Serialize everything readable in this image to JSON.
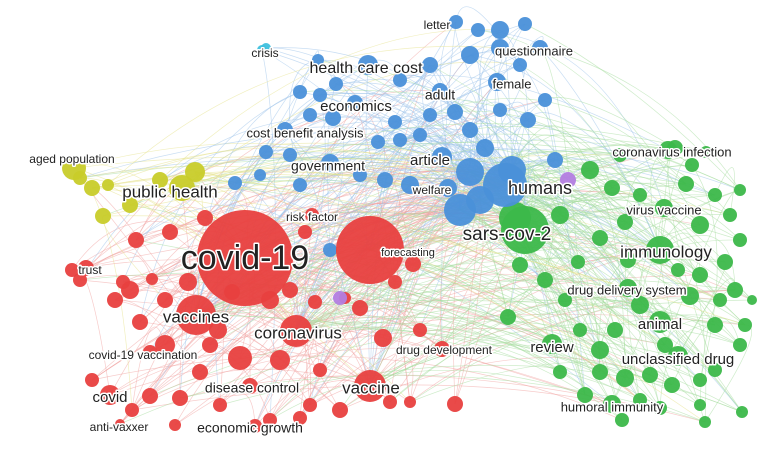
{
  "colors": {
    "red": "#e8403f",
    "blue": "#4a90d9",
    "green": "#3cb84a",
    "yellow": "#c8cc2a",
    "purple": "#b37ee0",
    "cyan": "#3fc0dd",
    "edge_red": "#f0a3a0",
    "edge_blue": "#9cc2ea",
    "edge_green": "#a6dc9f",
    "edge_yellow": "#e6e28a"
  },
  "labels": [
    {
      "id": "covid-19",
      "text": "covid-19",
      "cluster": "red"
    },
    {
      "id": "vaccines",
      "text": "vaccines",
      "cluster": "red"
    },
    {
      "id": "coronavirus",
      "text": "coronavirus",
      "cluster": "red"
    },
    {
      "id": "vaccine",
      "text": "vaccine",
      "cluster": "red"
    },
    {
      "id": "covid",
      "text": "covid",
      "cluster": "red"
    },
    {
      "id": "trust",
      "text": "trust",
      "cluster": "red"
    },
    {
      "id": "covid-19-vaccination",
      "text": "covid-19 vaccination",
      "cluster": "red"
    },
    {
      "id": "disease-control",
      "text": "disease control",
      "cluster": "red"
    },
    {
      "id": "economic-growth",
      "text": "economic growth",
      "cluster": "red"
    },
    {
      "id": "anti-vaxxer",
      "text": "anti-vaxxer",
      "cluster": "red"
    },
    {
      "id": "risk-factor",
      "text": "risk factor",
      "cluster": "red"
    },
    {
      "id": "forecasting",
      "text": "forecasting",
      "cluster": "red"
    },
    {
      "id": "drug-development",
      "text": "drug development",
      "cluster": "red"
    },
    {
      "id": "humans",
      "text": "humans",
      "cluster": "blue"
    },
    {
      "id": "article",
      "text": "article",
      "cluster": "blue"
    },
    {
      "id": "welfare",
      "text": "welfare",
      "cluster": "blue"
    },
    {
      "id": "government",
      "text": "government",
      "cluster": "blue"
    },
    {
      "id": "cost-benefit-analysis",
      "text": "cost benefit analysis",
      "cluster": "blue"
    },
    {
      "id": "economics",
      "text": "economics",
      "cluster": "blue"
    },
    {
      "id": "health-care-cost",
      "text": "health care cost",
      "cluster": "blue"
    },
    {
      "id": "adult",
      "text": "adult",
      "cluster": "blue"
    },
    {
      "id": "female",
      "text": "female",
      "cluster": "blue"
    },
    {
      "id": "questionnaire",
      "text": "questionnaire",
      "cluster": "blue"
    },
    {
      "id": "letter",
      "text": "letter",
      "cluster": "blue"
    },
    {
      "id": "crisis",
      "text": "crisis",
      "cluster": "cyan"
    },
    {
      "id": "sars-cov-2",
      "text": "sars-cov-2",
      "cluster": "green"
    },
    {
      "id": "immunology",
      "text": "immunology",
      "cluster": "green"
    },
    {
      "id": "coronavirus-infection",
      "text": "coronavirus infection",
      "cluster": "green"
    },
    {
      "id": "virus-vaccine",
      "text": "virus vaccine",
      "cluster": "green"
    },
    {
      "id": "drug-delivery-system",
      "text": "drug delivery system",
      "cluster": "green"
    },
    {
      "id": "animal",
      "text": "animal",
      "cluster": "green"
    },
    {
      "id": "unclassified-drug",
      "text": "unclassified drug",
      "cluster": "green"
    },
    {
      "id": "review",
      "text": "review",
      "cluster": "green"
    },
    {
      "id": "humoral-immunity",
      "text": "humoral immunity",
      "cluster": "green"
    },
    {
      "id": "public-health",
      "text": "public health",
      "cluster": "yellow"
    },
    {
      "id": "aged-population",
      "text": "aged population",
      "cluster": "yellow"
    }
  ]
}
